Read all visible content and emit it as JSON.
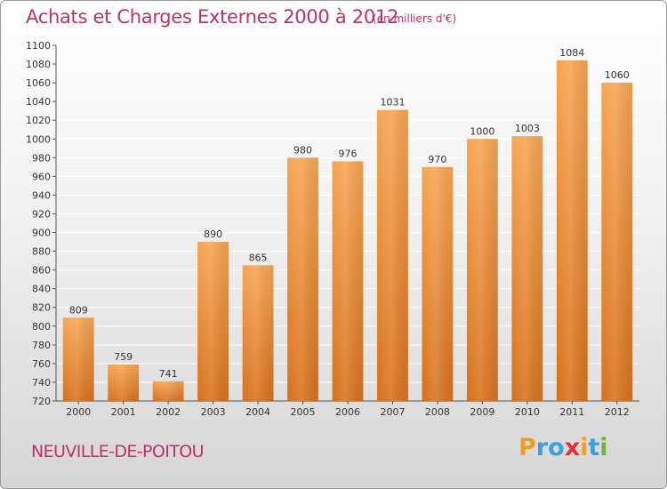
{
  "title": "Achats et Charges Externes 2000 à 2012",
  "subtitle": "(en milliers d'€)",
  "place": "NEUVILLE-DE-POITOU",
  "logo": {
    "text": "Proxiti",
    "letters": [
      "P",
      "r",
      "o",
      "x",
      "i",
      "t",
      "i"
    ],
    "colors": [
      "#f0a020",
      "#3aa0e0",
      "#3aa0e0",
      "#e83030",
      "#f0a020",
      "#3aa0e0",
      "#70b830"
    ]
  },
  "colors": {
    "bar": "#f0953a",
    "bar_dark": "#d8711c",
    "title": "#c0306a",
    "grid": "#ffffff"
  },
  "chart_data": {
    "type": "bar",
    "title": "Achats et Charges Externes 2000 à 2012",
    "subtitle": "(en milliers d'€)",
    "categories": [
      "2000",
      "2001",
      "2002",
      "2003",
      "2004",
      "2005",
      "2006",
      "2007",
      "2008",
      "2009",
      "2010",
      "2011",
      "2012"
    ],
    "values": [
      809,
      759,
      741,
      890,
      865,
      980,
      976,
      1031,
      970,
      1000,
      1003,
      1084,
      1060
    ],
    "ylim": [
      720,
      1100
    ],
    "yticks": [
      720,
      740,
      760,
      780,
      800,
      820,
      840,
      860,
      880,
      900,
      920,
      940,
      960,
      980,
      1000,
      1020,
      1040,
      1060,
      1080,
      1100
    ],
    "grid": true
  }
}
